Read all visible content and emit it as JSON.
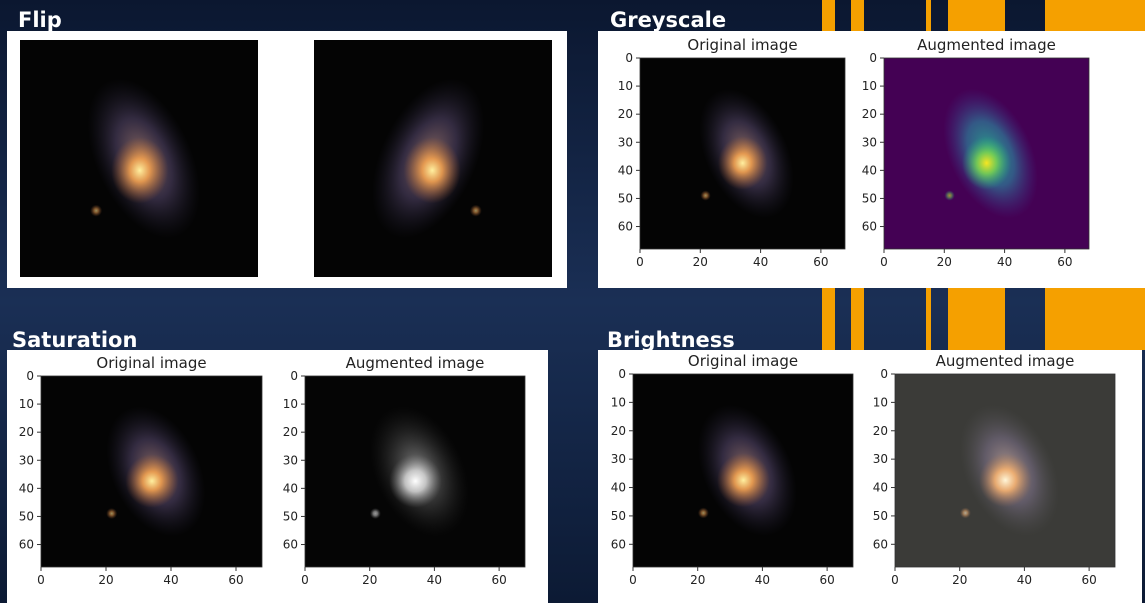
{
  "panels": [
    {
      "title": "Flip"
    },
    {
      "title": "Greyscale",
      "subplots": [
        {
          "title": "Original image"
        },
        {
          "title": "Augmented image"
        }
      ],
      "xticks": [
        0,
        20,
        40,
        60
      ],
      "yticks": [
        0,
        10,
        20,
        30,
        40,
        50,
        60
      ]
    },
    {
      "title": "Saturation",
      "subplots": [
        {
          "title": "Original image"
        },
        {
          "title": "Augmented image"
        }
      ],
      "xticks": [
        0,
        20,
        40,
        60
      ],
      "yticks": [
        0,
        10,
        20,
        30,
        40,
        50,
        60
      ]
    },
    {
      "title": "Brightness",
      "subplots": [
        {
          "title": "Original image"
        },
        {
          "title": "Augmented image"
        }
      ],
      "xticks": [
        0,
        20,
        40,
        60
      ],
      "yticks": [
        0,
        10,
        20,
        30,
        40,
        50,
        60
      ]
    }
  ]
}
